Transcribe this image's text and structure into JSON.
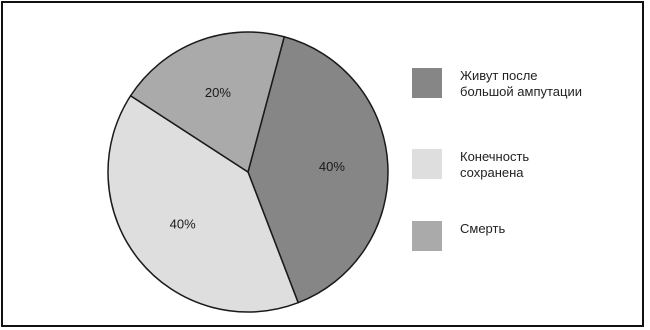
{
  "chart_data": {
    "type": "pie",
    "slices": [
      {
        "label": "Живут после\nбольшой ампутации",
        "value": 40,
        "value_label": "40%",
        "color": "#868686"
      },
      {
        "label": "Конечность\nсохранена",
        "value": 40,
        "value_label": "40%",
        "color": "#dedede"
      },
      {
        "label": "Смерть",
        "value": 20,
        "value_label": "20%",
        "color": "#aaaaaa"
      }
    ],
    "legend_position": "right"
  }
}
